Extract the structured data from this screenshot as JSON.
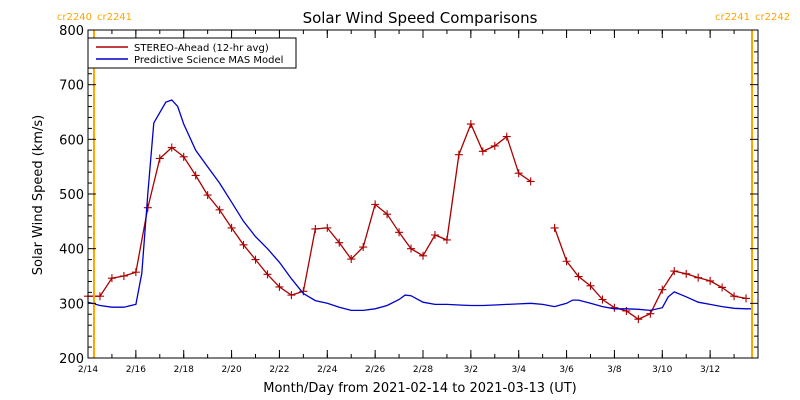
{
  "chart_data": {
    "type": "line",
    "title": "Solar Wind Speed Comparisons",
    "xlabel": "Month/Day from 2021-02-14 to 2021-03-13 (UT)",
    "ylabel": "Solar Wind Speed (km/s)",
    "x_range": [
      "2021-02-14",
      "2021-03-13"
    ],
    "ylim": [
      200,
      800
    ],
    "yticks": [
      200,
      300,
      400,
      500,
      600,
      700,
      800
    ],
    "xticks": [
      {
        "x": "2021-02-14",
        "label": "2/14"
      },
      {
        "x": "2021-02-16",
        "label": "2/16"
      },
      {
        "x": "2021-02-18",
        "label": "2/18"
      },
      {
        "x": "2021-02-20",
        "label": "2/20"
      },
      {
        "x": "2021-02-22",
        "label": "2/22"
      },
      {
        "x": "2021-02-24",
        "label": "2/24"
      },
      {
        "x": "2021-02-26",
        "label": "2/26"
      },
      {
        "x": "2021-02-28",
        "label": "2/28"
      },
      {
        "x": "2021-03-02",
        "label": "3/2"
      },
      {
        "x": "2021-03-04",
        "label": "3/4"
      },
      {
        "x": "2021-03-06",
        "label": "3/6"
      },
      {
        "x": "2021-03-08",
        "label": "3/8"
      },
      {
        "x": "2021-03-10",
        "label": "3/10"
      },
      {
        "x": "2021-03-12",
        "label": "3/12"
      }
    ],
    "grid": false,
    "legend_position": "top-left",
    "carrington_markers": [
      {
        "date": "2021-02-14 06:00",
        "left_label": "cr2240",
        "right_label": "cr2241",
        "color": "#ffa500"
      },
      {
        "date": "2021-03-13 18:00",
        "left_label": "cr2241",
        "right_label": "cr2242",
        "color": "#ffa500"
      }
    ],
    "series": [
      {
        "name": "STEREO-Ahead (12-hr avg)",
        "color": "#aa0000",
        "marker": "plus",
        "segments": [
          [
            [
              "2021-02-14 00:00",
              313
            ],
            [
              "2021-02-14 12:00",
              313
            ],
            [
              "2021-02-15 00:00",
              346
            ],
            [
              "2021-02-15 12:00",
              350
            ],
            [
              "2021-02-16 00:00",
              357
            ],
            [
              "2021-02-16 12:00",
              475
            ],
            [
              "2021-02-17 00:00",
              565
            ],
            [
              "2021-02-17 12:00",
              585
            ],
            [
              "2021-02-18 00:00",
              568
            ],
            [
              "2021-02-18 12:00",
              534
            ],
            [
              "2021-02-19 00:00",
              498
            ],
            [
              "2021-02-19 12:00",
              471
            ],
            [
              "2021-02-20 00:00",
              438
            ],
            [
              "2021-02-20 12:00",
              407
            ],
            [
              "2021-02-21 00:00",
              380
            ],
            [
              "2021-02-21 12:00",
              353
            ],
            [
              "2021-02-22 00:00",
              330
            ],
            [
              "2021-02-22 12:00",
              315
            ],
            [
              "2021-02-23 00:00",
              322
            ],
            [
              "2021-02-23 12:00",
              436
            ],
            [
              "2021-02-24 00:00",
              438
            ],
            [
              "2021-02-24 12:00",
              411
            ],
            [
              "2021-02-25 00:00",
              381
            ],
            [
              "2021-02-25 12:00",
              403
            ],
            [
              "2021-02-26 00:00",
              481
            ],
            [
              "2021-02-26 12:00",
              463
            ],
            [
              "2021-02-27 00:00",
              430
            ],
            [
              "2021-02-27 12:00",
              400
            ],
            [
              "2021-02-28 00:00",
              387
            ],
            [
              "2021-02-28 12:00",
              425
            ],
            [
              "2021-03-01 00:00",
              416
            ],
            [
              "2021-03-01 12:00",
              572
            ],
            [
              "2021-03-02 00:00",
              628
            ],
            [
              "2021-03-02 12:00",
              578
            ],
            [
              "2021-03-03 00:00",
              588
            ],
            [
              "2021-03-03 12:00",
              605
            ],
            [
              "2021-03-04 00:00",
              538
            ],
            [
              "2021-03-04 12:00",
              523
            ]
          ],
          [
            [
              "2021-03-05 12:00",
              438
            ],
            [
              "2021-03-06 00:00",
              377
            ],
            [
              "2021-03-06 12:00",
              349
            ],
            [
              "2021-03-07 00:00",
              332
            ],
            [
              "2021-03-07 12:00",
              307
            ],
            [
              "2021-03-08 00:00",
              292
            ],
            [
              "2021-03-08 12:00",
              286
            ],
            [
              "2021-03-09 00:00",
              271
            ],
            [
              "2021-03-09 12:00",
              281
            ],
            [
              "2021-03-10 00:00",
              325
            ],
            [
              "2021-03-10 12:00",
              359
            ],
            [
              "2021-03-11 00:00",
              354
            ],
            [
              "2021-03-11 12:00",
              347
            ],
            [
              "2021-03-12 00:00",
              341
            ],
            [
              "2021-03-12 12:00",
              329
            ],
            [
              "2021-03-13 00:00",
              313
            ],
            [
              "2021-03-13 12:00",
              309
            ]
          ]
        ]
      },
      {
        "name": "Predictive Science MAS Model",
        "color": "#0000cc",
        "marker": "none",
        "segments": [
          [
            [
              "2021-02-14 00:00",
              302
            ],
            [
              "2021-02-14 12:00",
              296
            ],
            [
              "2021-02-15 00:00",
              293
            ],
            [
              "2021-02-15 12:00",
              293
            ],
            [
              "2021-02-16 00:00",
              298
            ],
            [
              "2021-02-16 06:00",
              355
            ],
            [
              "2021-02-16 12:00",
              500
            ],
            [
              "2021-02-16 18:00",
              630
            ],
            [
              "2021-02-17 06:00",
              668
            ],
            [
              "2021-02-17 12:00",
              672
            ],
            [
              "2021-02-17 18:00",
              660
            ],
            [
              "2021-02-18 00:00",
              628
            ],
            [
              "2021-02-18 12:00",
              580
            ],
            [
              "2021-02-19 00:00",
              550
            ],
            [
              "2021-02-19 12:00",
              520
            ],
            [
              "2021-02-20 00:00",
              485
            ],
            [
              "2021-02-20 12:00",
              450
            ],
            [
              "2021-02-21 00:00",
              422
            ],
            [
              "2021-02-21 12:00",
              400
            ],
            [
              "2021-02-22 00:00",
              375
            ],
            [
              "2021-02-22 12:00",
              345
            ],
            [
              "2021-02-23 00:00",
              318
            ],
            [
              "2021-02-23 12:00",
              305
            ],
            [
              "2021-02-24 00:00",
              300
            ],
            [
              "2021-02-24 12:00",
              293
            ],
            [
              "2021-02-25 00:00",
              287
            ],
            [
              "2021-02-25 12:00",
              287
            ],
            [
              "2021-02-26 00:00",
              290
            ],
            [
              "2021-02-26 12:00",
              296
            ],
            [
              "2021-02-27 00:00",
              307
            ],
            [
              "2021-02-27 06:00",
              315
            ],
            [
              "2021-02-27 12:00",
              314
            ],
            [
              "2021-02-28 00:00",
              302
            ],
            [
              "2021-02-28 12:00",
              298
            ],
            [
              "2021-03-01 00:00",
              298
            ],
            [
              "2021-03-01 12:00",
              297
            ],
            [
              "2021-03-02 00:00",
              296
            ],
            [
              "2021-03-02 12:00",
              296
            ],
            [
              "2021-03-03 00:00",
              297
            ],
            [
              "2021-03-03 12:00",
              298
            ],
            [
              "2021-03-04 00:00",
              299
            ],
            [
              "2021-03-04 12:00",
              300
            ],
            [
              "2021-03-05 00:00",
              298
            ],
            [
              "2021-03-05 12:00",
              294
            ],
            [
              "2021-03-06 00:00",
              300
            ],
            [
              "2021-03-06 06:00",
              306
            ],
            [
              "2021-03-06 12:00",
              306
            ],
            [
              "2021-03-07 00:00",
              300
            ],
            [
              "2021-03-07 12:00",
              294
            ],
            [
              "2021-03-08 00:00",
              290
            ],
            [
              "2021-03-08 12:00",
              290
            ],
            [
              "2021-03-09 00:00",
              289
            ],
            [
              "2021-03-09 12:00",
              287
            ],
            [
              "2021-03-10 00:00",
              292
            ],
            [
              "2021-03-10 06:00",
              312
            ],
            [
              "2021-03-10 12:00",
              321
            ],
            [
              "2021-03-11 00:00",
              312
            ],
            [
              "2021-03-11 12:00",
              302
            ],
            [
              "2021-03-12 00:00",
              298
            ],
            [
              "2021-03-12 12:00",
              294
            ],
            [
              "2021-03-13 00:00",
              291
            ],
            [
              "2021-03-13 12:00",
              290
            ],
            [
              "2021-03-13 18:00",
              290
            ]
          ]
        ]
      }
    ]
  }
}
